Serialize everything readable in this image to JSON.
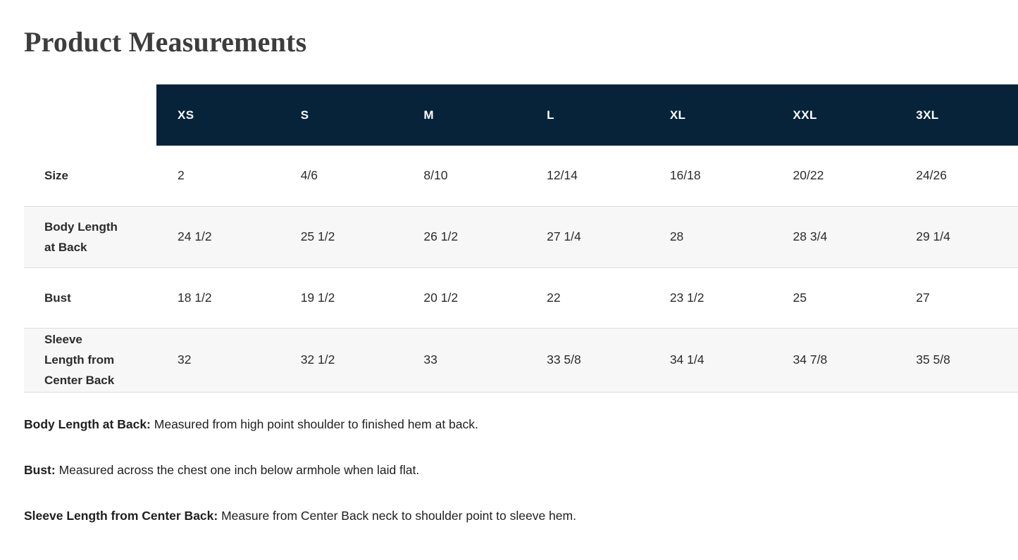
{
  "page": {
    "title": "Product Measurements"
  },
  "table": {
    "column_headers": [
      "XS",
      "S",
      "M",
      "L",
      "XL",
      "XXL",
      "3XL"
    ],
    "rows": [
      {
        "label": "Size",
        "values": [
          "2",
          "4/6",
          "8/10",
          "12/14",
          "16/18",
          "20/22",
          "24/26"
        ]
      },
      {
        "label": "Body Length at Back",
        "values": [
          "24 1/2",
          "25 1/2",
          "26 1/2",
          "27 1/4",
          "28",
          "28 3/4",
          "29 1/4"
        ]
      },
      {
        "label": "Bust",
        "values": [
          "18 1/2",
          "19 1/2",
          "20 1/2",
          "22",
          "23 1/2",
          "25",
          "27"
        ]
      },
      {
        "label": "Sleeve Length from Center Back",
        "values": [
          "32",
          "32 1/2",
          "33",
          "33 5/8",
          "34 1/4",
          "34 7/8",
          "35 5/8"
        ]
      }
    ]
  },
  "footnotes": [
    {
      "term": "Body Length at Back:",
      "definition": "Measured from high point shoulder to finished hem at back."
    },
    {
      "term": "Bust:",
      "definition": "Measured across the chest one inch below armhole when laid flat."
    },
    {
      "term": "Sleeve Length from Center Back:",
      "definition": "Measure from Center Back neck to shoulder point to sleeve hem."
    }
  ],
  "colors": {
    "header_bg": "#07233a",
    "header_text": "#ffffff",
    "zebra_row_bg": "#f7f7f7",
    "row_border": "#dddddd",
    "title_text": "#3d3d3d",
    "body_text": "#2b2b2b"
  }
}
